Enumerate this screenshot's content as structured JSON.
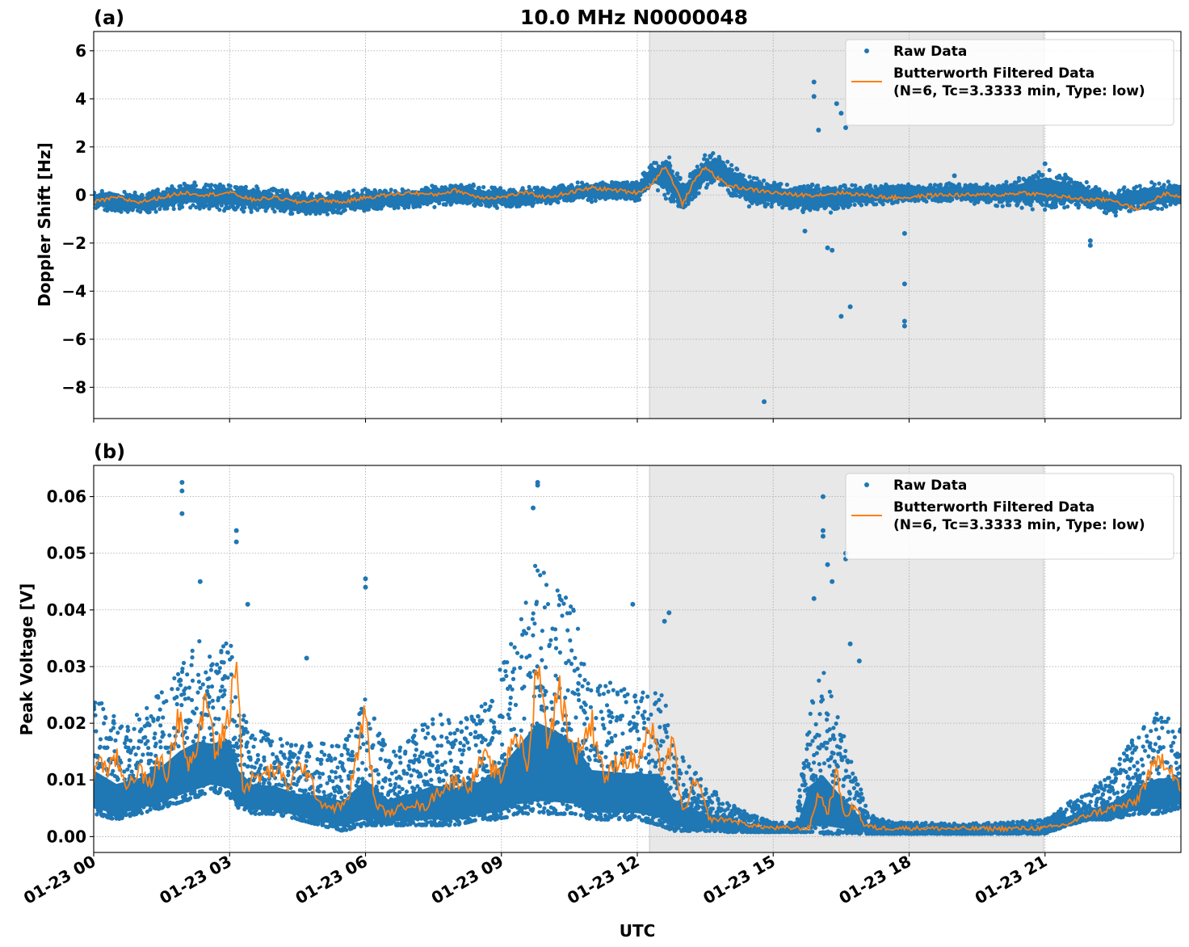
{
  "figure": {
    "title": "10.0 MHz N0000048",
    "xlabel": "UTC",
    "x_ticks": [
      "01-23 00",
      "01-23 03",
      "01-23 06",
      "01-23 09",
      "01-23 12",
      "01-23 15",
      "01-23 18",
      "01-23 21"
    ]
  },
  "colors": {
    "raw": "#1f77b4",
    "filtered": "#ff7f0e",
    "shade": "#e8e8e8",
    "grid": "#b0b0b0"
  },
  "chart_data": [
    {
      "type": "scatter",
      "panel_label": "(a)",
      "ylabel": "Doppler Shift [Hz]",
      "xlim": [
        0,
        24
      ],
      "ylim": [
        -9.3,
        6.8
      ],
      "y_ticks": [
        6,
        4,
        2,
        0,
        -2,
        -4,
        -6,
        -8
      ],
      "y_tick_labels": [
        "6",
        "4",
        "2",
        "0",
        "−2",
        "−4",
        "−6",
        "−8"
      ],
      "grid": true,
      "shaded_x": [
        12.27,
        20.97
      ],
      "legend": {
        "position": "top-right",
        "entries": [
          {
            "label": "Raw Data",
            "marker": "dot"
          },
          {
            "label": "Butterworth Filtered Data\n(N=6, Tc=3.3333 min, Type: low)",
            "marker": "line"
          }
        ]
      },
      "series": [
        {
          "name": "Raw Data",
          "kind": "band",
          "x": [
            0,
            1,
            2,
            3,
            4,
            5,
            6,
            7,
            8,
            9,
            10,
            11,
            12,
            12.3,
            12.7,
            13,
            13.3,
            13.5,
            13.8,
            14.2,
            14.5,
            15,
            16,
            17,
            18,
            19,
            20,
            21,
            22,
            22.5,
            23,
            24
          ],
          "low": [
            -0.7,
            -0.8,
            -0.6,
            -0.7,
            -0.8,
            -0.9,
            -0.7,
            -0.6,
            -0.5,
            -0.6,
            -0.4,
            -0.3,
            -0.3,
            0.3,
            -0.3,
            -0.9,
            -0.2,
            0.2,
            0.3,
            -0.3,
            -0.6,
            -0.6,
            -0.9,
            -0.5,
            -0.3,
            -0.3,
            -0.5,
            -0.7,
            -0.6,
            -1.0,
            -0.7,
            -0.6
          ],
          "high": [
            0.3,
            0.1,
            0.6,
            0.5,
            0.3,
            0.1,
            0.3,
            0.3,
            0.6,
            0.3,
            0.4,
            0.6,
            0.6,
            1.4,
            1.6,
            0.8,
            1.2,
            1.8,
            1.8,
            1.2,
            0.9,
            0.6,
            0.5,
            0.5,
            0.5,
            0.5,
            0.5,
            1.2,
            0.5,
            0.3,
            0.5,
            0.6
          ]
        },
        {
          "name": "Raw Data outliers",
          "kind": "points",
          "x": [
            14.8,
            16.5,
            16.7,
            17.9,
            17.9,
            17.9,
            17.9,
            15.9,
            15.9,
            16.0,
            16.4,
            16.5,
            16.6,
            19.0,
            21.0,
            22.0,
            22.0,
            16.2,
            16.3,
            15.7
          ],
          "y": [
            -8.6,
            -5.05,
            -4.65,
            -5.25,
            -5.45,
            -3.7,
            -1.6,
            4.7,
            4.1,
            2.7,
            3.8,
            3.4,
            2.8,
            0.8,
            1.3,
            -1.9,
            -2.1,
            -2.2,
            -2.3,
            -1.5
          ]
        },
        {
          "name": "Butterworth Filtered Data",
          "kind": "line",
          "x": [
            0,
            0.5,
            1,
            1.5,
            2,
            2.5,
            3,
            3.5,
            4,
            4.5,
            5,
            5.5,
            6,
            6.5,
            7,
            7.5,
            8,
            8.5,
            9,
            9.5,
            10,
            10.5,
            11,
            11.5,
            12,
            12.3,
            12.6,
            12.8,
            13,
            13.2,
            13.5,
            13.7,
            14,
            14.3,
            14.6,
            15,
            15.5,
            16,
            16.5,
            17,
            17.5,
            18,
            18.5,
            19,
            19.5,
            20,
            20.5,
            21,
            21.5,
            22,
            22.5,
            23,
            23.3,
            23.7,
            24
          ],
          "y": [
            -0.3,
            -0.1,
            -0.3,
            -0.1,
            0.1,
            0.0,
            0.1,
            -0.2,
            -0.1,
            -0.3,
            -0.2,
            -0.3,
            -0.1,
            0.0,
            0.1,
            0.0,
            0.2,
            -0.1,
            -0.1,
            0.1,
            -0.1,
            0.1,
            0.3,
            0.2,
            0.1,
            0.4,
            1.2,
            0.5,
            -0.4,
            0.4,
            1.2,
            0.8,
            0.4,
            0.3,
            0.2,
            0.1,
            0.0,
            0.0,
            0.1,
            0.0,
            -0.1,
            -0.1,
            0.0,
            0.0,
            0.0,
            0.0,
            0.1,
            0.0,
            -0.1,
            -0.2,
            -0.2,
            -0.6,
            -0.3,
            0.1,
            -0.1
          ]
        }
      ]
    },
    {
      "type": "scatter",
      "panel_label": "(b)",
      "ylabel": "Peak Voltage [V]",
      "xlim": [
        0,
        24
      ],
      "ylim": [
        -0.0028,
        0.0655
      ],
      "y_ticks": [
        0.06,
        0.05,
        0.04,
        0.03,
        0.02,
        0.01,
        0.0
      ],
      "y_tick_labels": [
        "0.06",
        "0.05",
        "0.04",
        "0.03",
        "0.02",
        "0.01",
        "0.00"
      ],
      "grid": true,
      "shaded_x": [
        12.27,
        20.97
      ],
      "legend": {
        "position": "top-right",
        "entries": [
          {
            "label": "Raw Data",
            "marker": "dot"
          },
          {
            "label": "Butterworth Filtered Data\n(N=6, Tc=3.3333 min, Type: low)",
            "marker": "line"
          }
        ]
      },
      "series": [
        {
          "name": "Raw Data",
          "kind": "band",
          "x": [
            0,
            0.5,
            1,
            1.5,
            1.9,
            2.3,
            2.6,
            3.0,
            3.2,
            3.5,
            4,
            4.5,
            5,
            5.5,
            6,
            6.5,
            7,
            7.5,
            8,
            8.5,
            9,
            9.3,
            9.8,
            10.2,
            10.6,
            11,
            11.5,
            12,
            12.5,
            12.8,
            13.2,
            13.6,
            14,
            14.5,
            15,
            15.5,
            15.8,
            16.1,
            16.4,
            16.8,
            17.1,
            17.5,
            18,
            19,
            20,
            21,
            21.5,
            22,
            22.5,
            23,
            23.5,
            24
          ],
          "low": [
            0.004,
            0.003,
            0.004,
            0.005,
            0.006,
            0.007,
            0.008,
            0.007,
            0.005,
            0.004,
            0.004,
            0.003,
            0.002,
            0.001,
            0.002,
            0.002,
            0.002,
            0.002,
            0.002,
            0.003,
            0.003,
            0.004,
            0.004,
            0.004,
            0.004,
            0.003,
            0.003,
            0.003,
            0.002,
            0.001,
            0.001,
            0.001,
            0.0008,
            0.0008,
            0.0008,
            0.0008,
            0.0008,
            0.0005,
            0.0005,
            0.0005,
            0.0005,
            0.0005,
            0.0005,
            0.0005,
            0.0005,
            0.0005,
            0.002,
            0.003,
            0.003,
            0.004,
            0.004,
            0.005
          ],
          "high": [
            0.026,
            0.021,
            0.022,
            0.026,
            0.032,
            0.035,
            0.032,
            0.036,
            0.024,
            0.019,
            0.018,
            0.016,
            0.017,
            0.016,
            0.025,
            0.015,
            0.018,
            0.022,
            0.021,
            0.022,
            0.03,
            0.036,
            0.05,
            0.046,
            0.04,
            0.028,
            0.027,
            0.026,
            0.028,
            0.017,
            0.012,
            0.009,
            0.006,
            0.004,
            0.0025,
            0.0025,
            0.024,
            0.03,
            0.022,
            0.012,
            0.004,
            0.0028,
            0.0025,
            0.0023,
            0.0025,
            0.003,
            0.006,
            0.008,
            0.012,
            0.018,
            0.022,
            0.02
          ]
        },
        {
          "name": "Raw Data outliers",
          "kind": "points",
          "x": [
            1.95,
            1.95,
            1.95,
            3.15,
            3.15,
            2.35,
            6.0,
            6.0,
            9.8,
            9.8,
            9.7,
            16.1,
            16.1,
            16.1,
            16.6,
            16.6,
            11.9,
            12.7,
            12.6,
            3.4,
            4.7,
            15.9,
            16.3,
            16.2,
            16.7,
            16.9
          ],
          "y": [
            0.0625,
            0.061,
            0.057,
            0.054,
            0.052,
            0.045,
            0.0455,
            0.044,
            0.0625,
            0.062,
            0.058,
            0.06,
            0.054,
            0.053,
            0.05,
            0.049,
            0.041,
            0.0395,
            0.038,
            0.041,
            0.0315,
            0.042,
            0.045,
            0.048,
            0.034,
            0.031
          ]
        },
        {
          "name": "Butterworth Filtered Data",
          "kind": "line",
          "x": [
            0,
            0.1,
            0.3,
            0.5,
            0.7,
            1,
            1.2,
            1.5,
            1.6,
            1.9,
            2.1,
            2.3,
            2.5,
            2.7,
            3.0,
            3.15,
            3.3,
            3.5,
            3.8,
            4.0,
            4.3,
            4.6,
            5.0,
            5.3,
            5.6,
            6.0,
            6.2,
            6.5,
            7.0,
            7.3,
            7.6,
            8.0,
            8.3,
            8.6,
            9.0,
            9.3,
            9.6,
            9.8,
            10.0,
            10.3,
            10.6,
            11.0,
            11.3,
            11.6,
            12.0,
            12.3,
            12.5,
            12.8,
            13.0,
            13.3,
            13.6,
            14.0,
            14.5,
            15.0,
            15.5,
            15.8,
            16.0,
            16.2,
            16.4,
            16.6,
            16.8,
            17.0,
            17.3,
            18,
            19,
            20,
            21,
            21.5,
            22,
            22.5,
            23,
            23.3,
            23.6,
            23.8,
            24
          ],
          "y": [
            0.009,
            0.015,
            0.011,
            0.014,
            0.009,
            0.012,
            0.009,
            0.014,
            0.01,
            0.022,
            0.013,
            0.016,
            0.025,
            0.014,
            0.022,
            0.032,
            0.008,
            0.01,
            0.011,
            0.012,
            0.009,
            0.013,
            0.006,
            0.005,
            0.006,
            0.022,
            0.006,
            0.004,
            0.006,
            0.005,
            0.008,
            0.01,
            0.009,
            0.014,
            0.01,
            0.019,
            0.012,
            0.033,
            0.017,
            0.026,
            0.014,
            0.02,
            0.01,
            0.014,
            0.013,
            0.019,
            0.012,
            0.016,
            0.004,
            0.01,
            0.003,
            0.003,
            0.002,
            0.0015,
            0.0015,
            0.0015,
            0.008,
            0.004,
            0.011,
            0.003,
            0.006,
            0.002,
            0.0015,
            0.0015,
            0.0014,
            0.0014,
            0.0015,
            0.0022,
            0.004,
            0.005,
            0.006,
            0.011,
            0.014,
            0.012,
            0.008
          ]
        }
      ]
    }
  ]
}
